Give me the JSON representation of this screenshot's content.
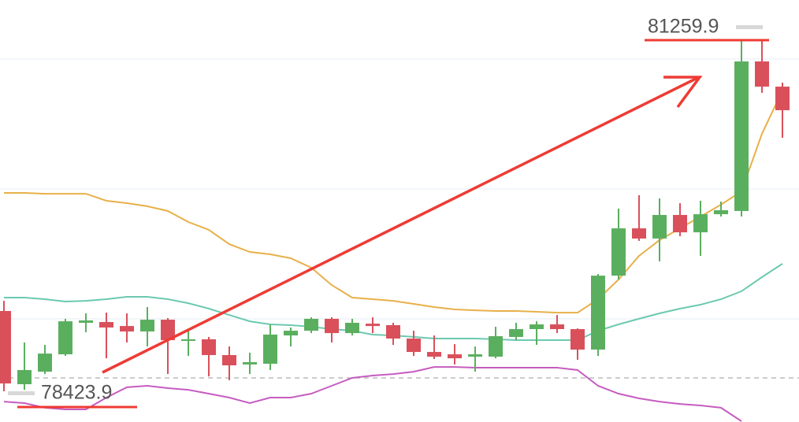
{
  "chart_data": {
    "type": "candlestick",
    "annotations": {
      "high": 81259.9,
      "low": 78423.9
    },
    "up_color": "#5aaf5f",
    "down_color": "#d9505b",
    "open": [
      79071,
      78481,
      78582,
      78722,
      78976,
      78982,
      78950,
      78906,
      79001,
      78830,
      78843,
      78716,
      78640,
      78646,
      78874,
      78912,
      79008,
      78893,
      78969,
      78957,
      78849,
      78741,
      78722,
      78703,
      78703,
      78862,
      78925,
      78963,
      78925,
      78760,
      79356,
      79737,
      79655,
      79845,
      79705,
      79851,
      79877,
      81082,
      80879
    ],
    "close": [
      78487,
      78595,
      78728,
      78988,
      78995,
      78938,
      78906,
      79001,
      78836,
      78843,
      78716,
      78633,
      78659,
      78881,
      78912,
      79008,
      78893,
      78976,
      78950,
      78849,
      78741,
      78703,
      78690,
      78722,
      78868,
      78925,
      78963,
      78925,
      78760,
      79356,
      79737,
      79655,
      79845,
      79705,
      79851,
      79883,
      81082,
      80879,
      80689
    ],
    "high": [
      79153,
      78817,
      78798,
      79008,
      79052,
      79058,
      79052,
      79103,
      79014,
      78912,
      78862,
      78785,
      78735,
      78963,
      78938,
      79020,
      79020,
      79008,
      79020,
      78976,
      78912,
      78874,
      78804,
      78785,
      78944,
      78976,
      78988,
      79039,
      78931,
      79369,
      79896,
      80004,
      79978,
      79940,
      79959,
      79953,
      81259.9,
      81259.9,
      80911
    ],
    "low": [
      78423.9,
      78436,
      78563,
      78709,
      78900,
      78690,
      78817,
      78785,
      78563,
      78709,
      78544,
      78513,
      78563,
      78595,
      78785,
      78893,
      78817,
      78874,
      78893,
      78798,
      78709,
      78684,
      78640,
      78582,
      78690,
      78836,
      78798,
      78893,
      78678,
      78709,
      79325,
      79636,
      79471,
      79674,
      79515,
      79832,
      79832,
      80829,
      80467
    ],
    "series": [
      {
        "color": "#e8b04a",
        "values": [
          80023,
          80023,
          80016,
          80016,
          80016,
          79959,
          79940,
          79915,
          79877,
          79788,
          79725,
          79610,
          79547,
          79528,
          79496,
          79420,
          79280,
          79179,
          79166,
          79153,
          79128,
          79103,
          79084,
          79077,
          79071,
          79071,
          79065,
          79058,
          79058,
          79166,
          79325,
          79515,
          79642,
          79737,
          79832,
          79928,
          80035,
          80499,
          80848
        ]
      },
      {
        "color": "#6cc9b0",
        "values": [
          79179,
          79179,
          79166,
          79147,
          79153,
          79166,
          79185,
          79185,
          79166,
          79134,
          79090,
          79039,
          78988,
          78963,
          78957,
          78944,
          78925,
          78912,
          78881,
          78874,
          78862,
          78849,
          78849,
          78849,
          78843,
          78836,
          78836,
          78836,
          78836,
          78912,
          78963,
          79008,
          79052,
          79090,
          79122,
          79166,
          79230,
          79344,
          79452
        ]
      },
      {
        "color": "#c65cc0",
        "values": [
          78341,
          78329,
          78291,
          78278,
          78278,
          78373,
          78456,
          78468,
          78449,
          78436,
          78405,
          78373,
          78329,
          78373,
          78373,
          78405,
          78468,
          78532,
          78551,
          78563,
          78582,
          78620,
          78620,
          78614,
          78614,
          78614,
          78614,
          78614,
          78595,
          78468,
          78405,
          78367,
          78341,
          78322,
          78310,
          78291,
          78183,
          null,
          null
        ]
      }
    ]
  }
}
